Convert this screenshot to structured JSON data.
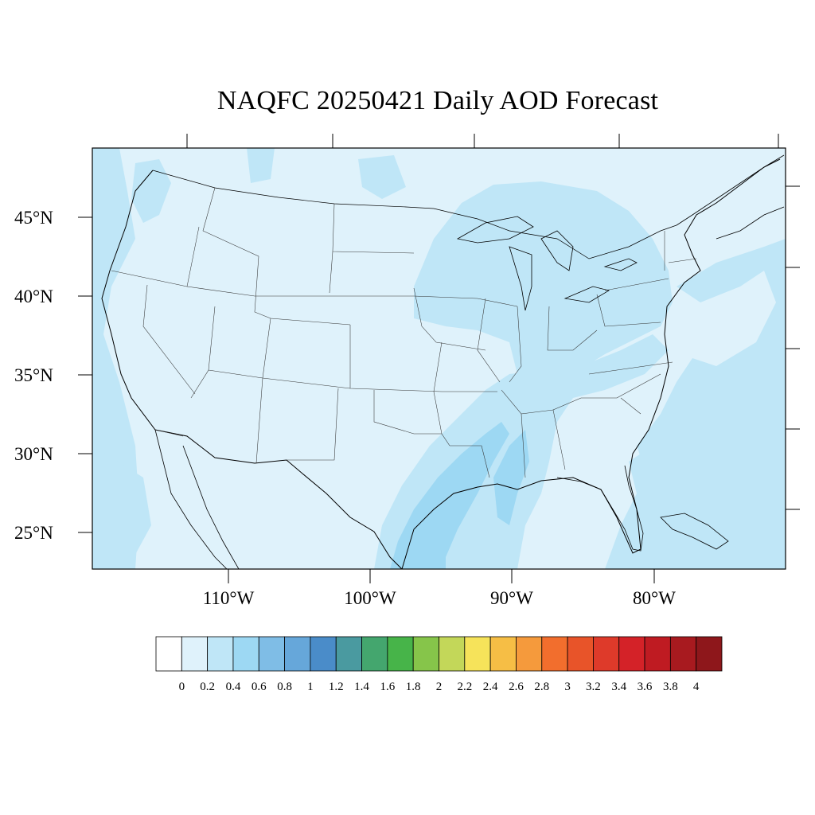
{
  "title": "NAQFC 20250421 Daily AOD Forecast",
  "lat_labels": [
    "45°N",
    "40°N",
    "35°N",
    "30°N",
    "25°N"
  ],
  "lon_labels": [
    "110°W",
    "100°W",
    "90°W",
    "80°W"
  ],
  "colorbar": {
    "labels": [
      "0",
      "0.2",
      "0.4",
      "0.6",
      "0.8",
      "1",
      "1.2",
      "1.4",
      "1.6",
      "1.8",
      "2",
      "2.2",
      "2.4",
      "2.6",
      "2.8",
      "3",
      "3.2",
      "3.4",
      "3.6",
      "3.8",
      "4"
    ],
    "colors": [
      "#ffffff",
      "#dff2fb",
      "#bfe6f7",
      "#9dd8f3",
      "#7fbde6",
      "#66a7da",
      "#4a8cc9",
      "#4a9aa0",
      "#44a66e",
      "#47b449",
      "#86c54a",
      "#c3d759",
      "#f6e35a",
      "#f6be45",
      "#f59a3c",
      "#f26e2d",
      "#e85429",
      "#de3a2a",
      "#d42228",
      "#bf1b22",
      "#a81a1f",
      "#8e171b"
    ]
  },
  "map": {
    "background_color": "#dff2fb",
    "highlight_color": "#bfe6f7",
    "peak_color": "#9dd8f3"
  }
}
